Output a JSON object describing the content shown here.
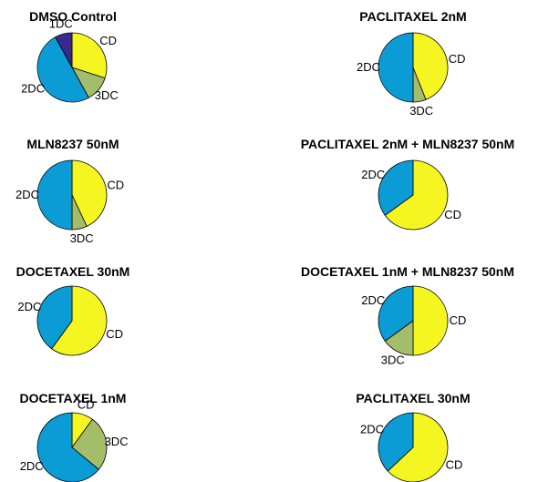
{
  "colors": {
    "CD": "#f5f521",
    "2DC": "#0b9bd5",
    "3DC": "#a3bd6b",
    "1DC": "#39288f"
  },
  "chart_data": [
    {
      "type": "pie",
      "title": "DMSO Control",
      "slices": [
        {
          "label": "CD",
          "value": 0.3
        },
        {
          "label": "3DC",
          "value": 0.12
        },
        {
          "label": "2DC",
          "value": 0.5
        },
        {
          "label": "1DC",
          "value": 0.08
        }
      ]
    },
    {
      "type": "pie",
      "title": "PACLITAXEL 2nM",
      "slices": [
        {
          "label": "CD",
          "value": 0.44
        },
        {
          "label": "3DC",
          "value": 0.06
        },
        {
          "label": "2DC",
          "value": 0.5
        }
      ]
    },
    {
      "type": "pie",
      "title": "MLN8237 50nM",
      "slices": [
        {
          "label": "CD",
          "value": 0.43
        },
        {
          "label": "3DC",
          "value": 0.07
        },
        {
          "label": "2DC",
          "value": 0.5
        }
      ]
    },
    {
      "type": "pie",
      "title": "PACLITAXEL 2nM + MLN8237 50nM",
      "slices": [
        {
          "label": "CD",
          "value": 0.65
        },
        {
          "label": "2DC",
          "value": 0.35
        }
      ]
    },
    {
      "type": "pie",
      "title": "DOCETAXEL 30nM",
      "slices": [
        {
          "label": "CD",
          "value": 0.6
        },
        {
          "label": "2DC",
          "value": 0.4
        }
      ]
    },
    {
      "type": "pie",
      "title": "DOCETAXEL 1nM + MLN8237 50nM",
      "slices": [
        {
          "label": "CD",
          "value": 0.5
        },
        {
          "label": "3DC",
          "value": 0.15
        },
        {
          "label": "2DC",
          "value": 0.35
        }
      ]
    },
    {
      "type": "pie",
      "title": "DOCETAXEL 1nM",
      "slices": [
        {
          "label": "CD",
          "value": 0.1
        },
        {
          "label": "3DC",
          "value": 0.26
        },
        {
          "label": "2DC",
          "value": 0.64
        }
      ]
    },
    {
      "type": "pie",
      "title": "PACLITAXEL 30nM",
      "slices": [
        {
          "label": "CD",
          "value": 0.63
        },
        {
          "label": "2DC",
          "value": 0.37
        }
      ]
    }
  ]
}
